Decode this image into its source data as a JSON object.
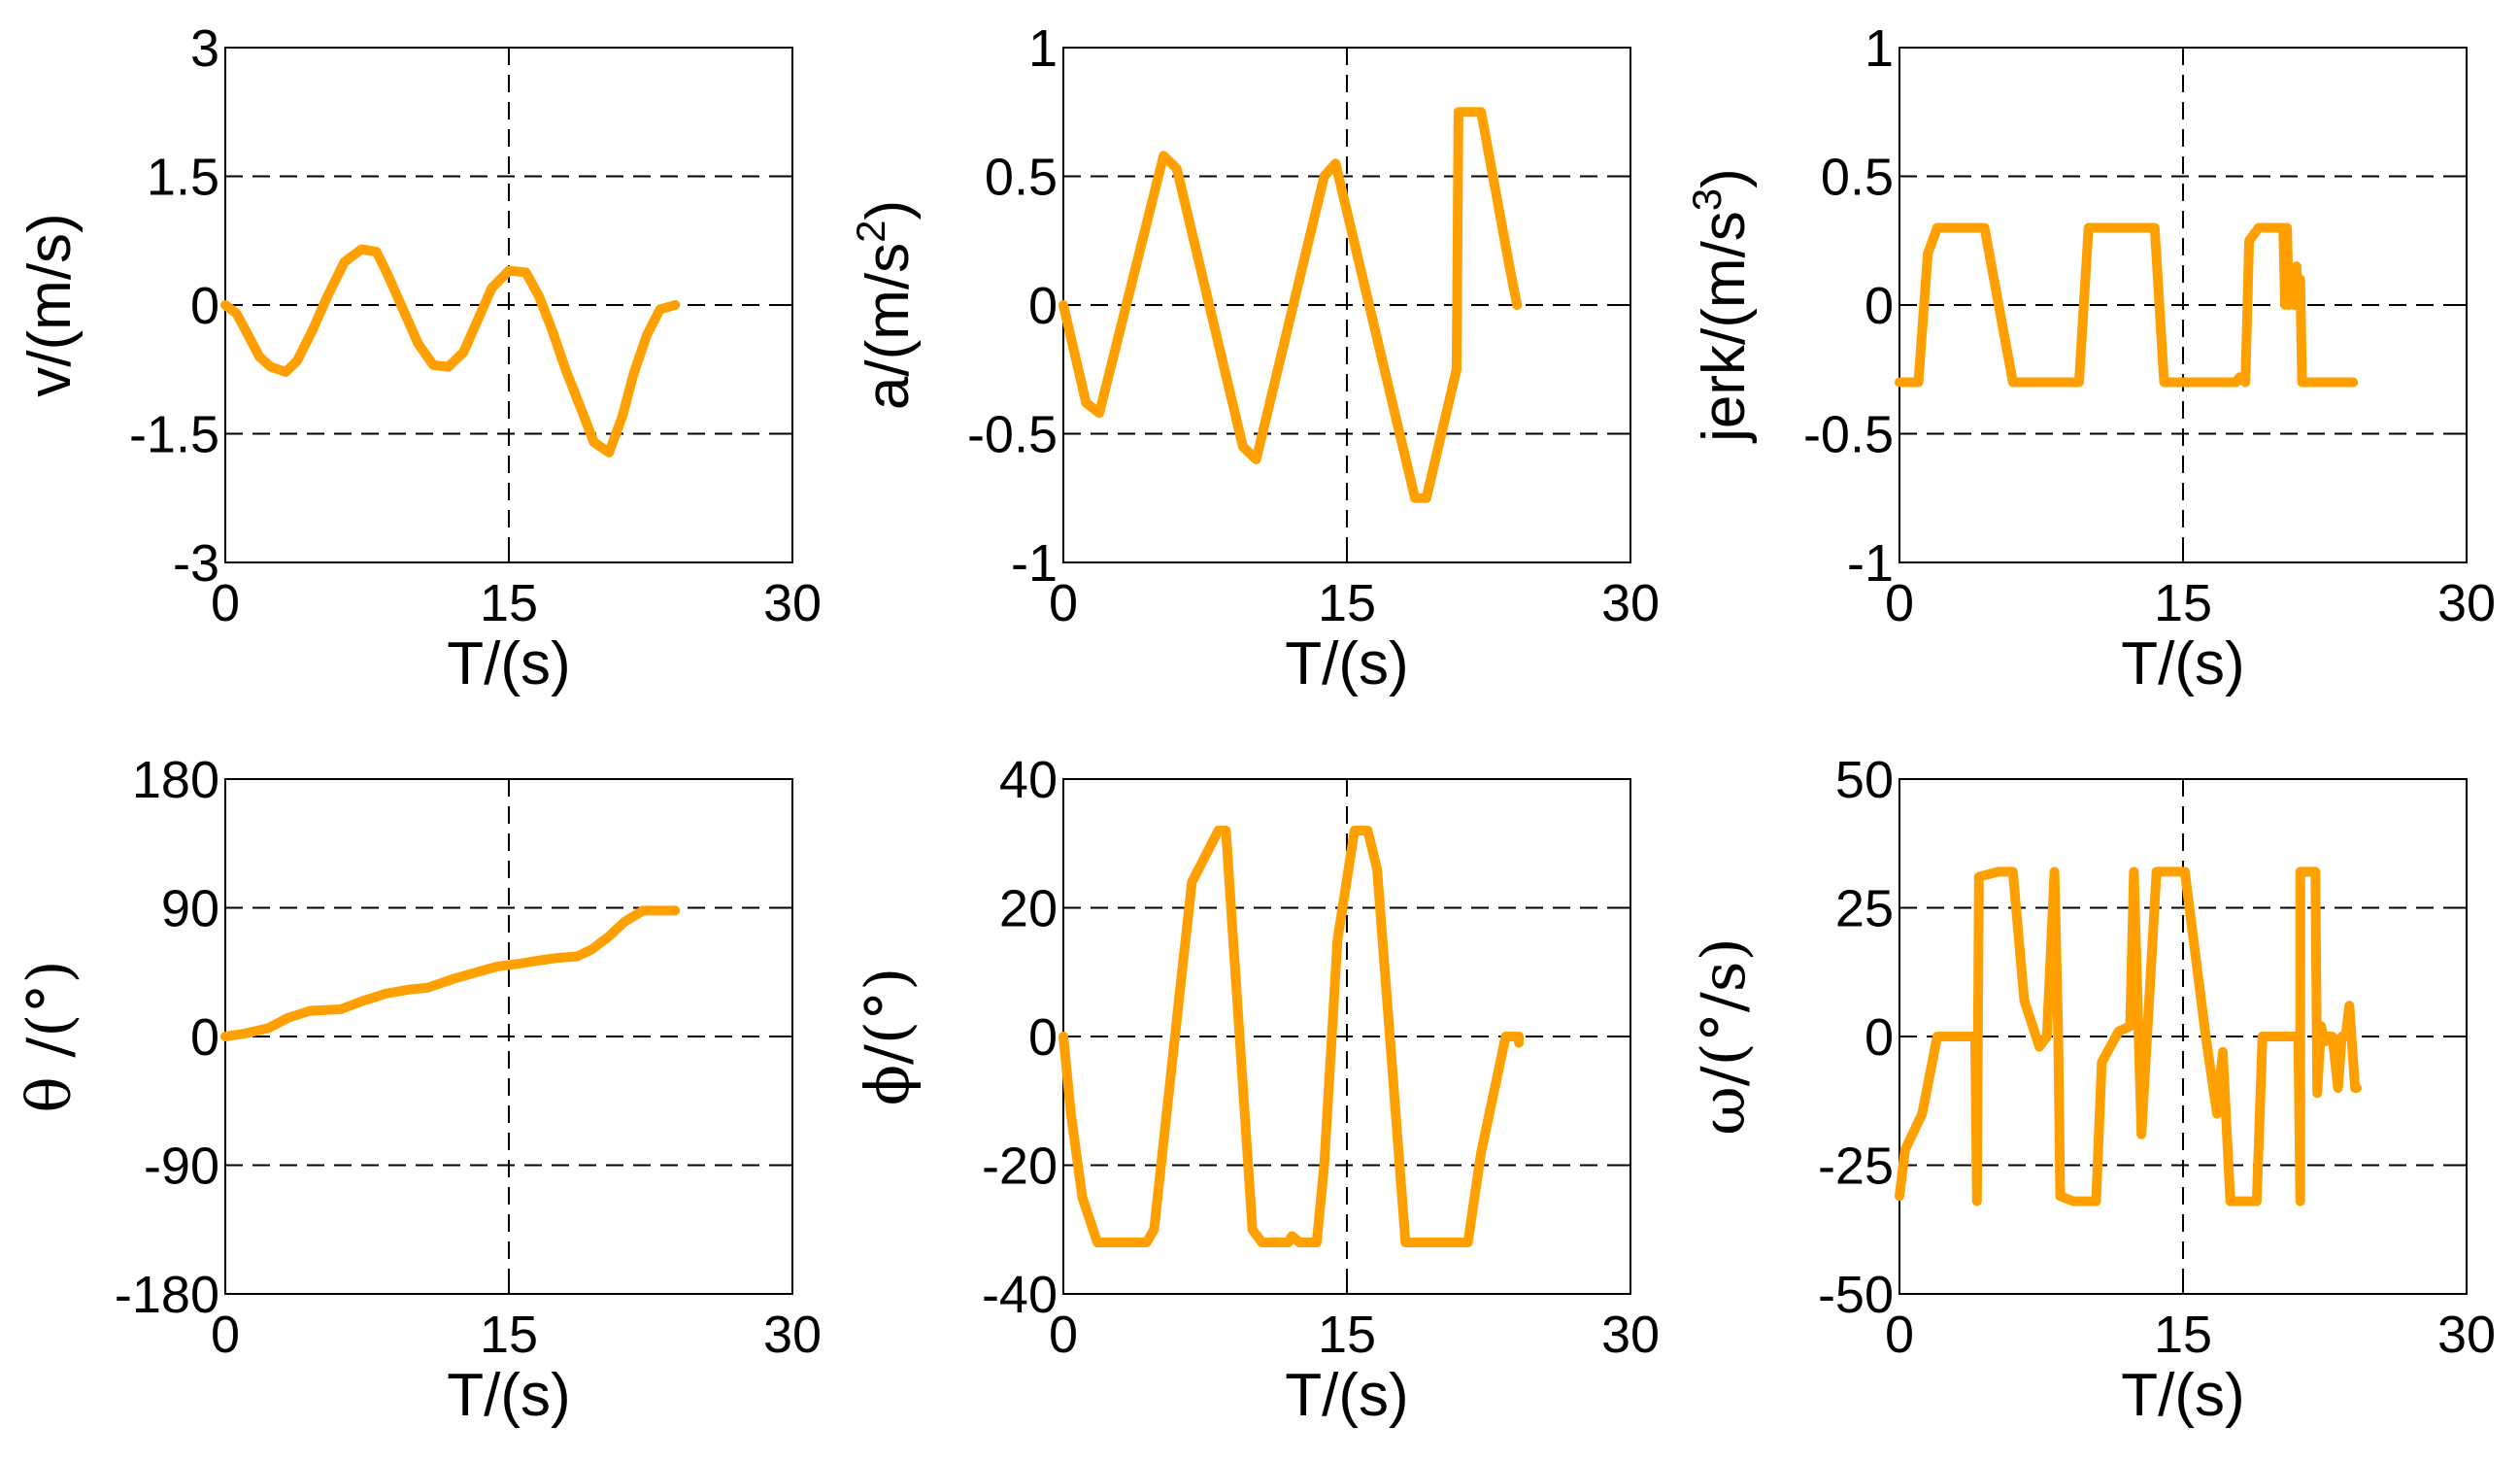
{
  "colors": {
    "series": "#FFA000",
    "axis": "#000000"
  },
  "chart_data": [
    {
      "type": "line",
      "xlabel": "T/(s)",
      "ylabel": "v/(m/s)",
      "xlim": [
        0,
        30
      ],
      "ylim": [
        -3,
        3
      ],
      "xticks": [
        "0",
        "15",
        "30"
      ],
      "yticks": [
        "-3",
        "-1.5",
        "0",
        "1.5",
        "3"
      ],
      "xtick_values": [
        0,
        15,
        30
      ],
      "ytick_values": [
        -3,
        -1.5,
        0,
        1.5,
        3
      ],
      "grid": "dashed",
      "series": [
        {
          "name": "v",
          "x": [
            0,
            0.6,
            1.2,
            1.8,
            2.4,
            3.2,
            3.8,
            4.6,
            5.4,
            6.3,
            7.2,
            8.0,
            8.6,
            9.4,
            10.2,
            11.0,
            11.8,
            12.6,
            13.3,
            14.1,
            15.0,
            15.9,
            16.6,
            17.3,
            18.0,
            18.8,
            19.5,
            20.3,
            21.0,
            21.6,
            22.3,
            23.0,
            23.8
          ],
          "y": [
            0,
            -0.1,
            -0.35,
            -0.6,
            -0.72,
            -0.78,
            -0.65,
            -0.3,
            0.1,
            0.5,
            0.65,
            0.62,
            0.35,
            -0.05,
            -0.45,
            -0.7,
            -0.72,
            -0.55,
            -0.2,
            0.2,
            0.4,
            0.38,
            0.1,
            -0.3,
            -0.75,
            -1.2,
            -1.6,
            -1.72,
            -1.3,
            -0.8,
            -0.35,
            -0.05,
            0
          ]
        }
      ]
    },
    {
      "type": "line",
      "xlabel": "T/(s)",
      "ylabel": "a/(m/s2)",
      "ylabel_main": "a/(m/s",
      "ylabel_sup": "2",
      "ylabel_close": ")",
      "xlim": [
        0,
        30
      ],
      "ylim": [
        -1,
        1
      ],
      "xticks": [
        "0",
        "15",
        "30"
      ],
      "yticks": [
        "-1",
        "-0.5",
        "0",
        "0.5",
        "1"
      ],
      "xtick_values": [
        0,
        15,
        30
      ],
      "ytick_values": [
        -1,
        -0.5,
        0,
        0.5,
        1
      ],
      "grid": "dashed",
      "series": [
        {
          "name": "a",
          "x": [
            0,
            1.2,
            1.9,
            5.3,
            6.0,
            9.5,
            10.2,
            13.8,
            14.4,
            18.6,
            19.2,
            20.8,
            20.9,
            22.1,
            23.6,
            24.0
          ],
          "y": [
            0,
            -0.38,
            -0.42,
            0.58,
            0.53,
            -0.55,
            -0.6,
            0.5,
            0.55,
            -0.75,
            -0.75,
            -0.25,
            0.75,
            0.75,
            0.15,
            0
          ]
        }
      ]
    },
    {
      "type": "line",
      "xlabel": "T/(s)",
      "ylabel": "jerk/(m/s3)",
      "ylabel_main": "jerk/(m/s",
      "ylabel_sup": "3",
      "ylabel_close": ")",
      "xlim": [
        0,
        30
      ],
      "ylim": [
        -1,
        1
      ],
      "xticks": [
        "0",
        "15",
        "30"
      ],
      "yticks": [
        "-1",
        "-0.5",
        "0",
        "0.5",
        "1"
      ],
      "xtick_values": [
        0,
        15,
        30
      ],
      "ytick_values": [
        -1,
        -0.5,
        0,
        0.5,
        1
      ],
      "grid": "dashed",
      "series": [
        {
          "name": "jerk",
          "x": [
            0,
            1.0,
            1.5,
            2.0,
            4.5,
            5.0,
            6.0,
            9.5,
            10.0,
            13.5,
            14.0,
            17.8,
            18.0,
            18.3,
            18.5,
            19.0,
            19.5,
            20.3,
            20.4,
            20.5,
            20.6,
            20.7,
            20.9,
            21.0,
            21.1,
            21.2,
            21.3,
            21.4,
            24.0
          ],
          "y": [
            -0.3,
            -0.3,
            0.2,
            0.3,
            0.3,
            0.1,
            -0.3,
            -0.3,
            0.3,
            0.3,
            -0.3,
            -0.3,
            -0.28,
            -0.3,
            0.25,
            0.3,
            0.3,
            0.3,
            0.0,
            0.3,
            0.0,
            0.1,
            0.0,
            0.15,
            0.0,
            0.1,
            -0.3,
            -0.3,
            -0.3
          ]
        }
      ]
    },
    {
      "type": "line",
      "xlabel": "T/(s)",
      "ylabel": "θ /(°)",
      "xlim": [
        0,
        30
      ],
      "ylim": [
        -180,
        180
      ],
      "xticks": [
        "0",
        "15",
        "30"
      ],
      "yticks": [
        "-180",
        "-90",
        "0",
        "90",
        "180"
      ],
      "xtick_values": [
        0,
        15,
        30
      ],
      "ytick_values": [
        -180,
        -90,
        0,
        90,
        180
      ],
      "grid": "dashed",
      "series": [
        {
          "name": "theta",
          "x": [
            0,
            1.0,
            2.3,
            3.3,
            4.5,
            6.1,
            7.3,
            8.5,
            9.8,
            10.7,
            12.0,
            13.3,
            14.4,
            15.6,
            16.5,
            17.6,
            18.6,
            19.4,
            20.3,
            21.1,
            22.1,
            23.0,
            23.8
          ],
          "y": [
            0,
            2,
            6,
            13,
            18,
            19,
            25,
            30,
            33,
            34,
            40,
            45,
            49,
            51,
            53,
            55,
            56,
            61,
            70,
            80,
            88,
            88,
            88
          ]
        }
      ]
    },
    {
      "type": "line",
      "xlabel": "T/(s)",
      "ylabel": "ϕ/(°)",
      "xlim": [
        0,
        30
      ],
      "ylim": [
        -40,
        40
      ],
      "xticks": [
        "0",
        "15",
        "30"
      ],
      "yticks": [
        "-40",
        "-20",
        "0",
        "20",
        "40"
      ],
      "xtick_values": [
        0,
        15,
        30
      ],
      "ytick_values": [
        -40,
        -20,
        0,
        20,
        40
      ],
      "grid": "dashed",
      "series": [
        {
          "name": "phi",
          "x": [
            0,
            0.4,
            1.0,
            1.8,
            4.4,
            4.8,
            6.2,
            6.8,
            8.2,
            8.6,
            10.0,
            10.5,
            11.9,
            12.1,
            12.5,
            13.4,
            13.8,
            14.5,
            15.4,
            16.1,
            16.6,
            18.1,
            18.6,
            21.4,
            22.1,
            23.4,
            24.1,
            24.1
          ],
          "y": [
            0,
            -12,
            -25,
            -32,
            -32,
            -30,
            8,
            24,
            32,
            32,
            -30,
            -32,
            -32,
            -31,
            -32,
            -32,
            -20,
            15,
            32,
            32,
            26,
            -32,
            -32,
            -32,
            -18,
            0,
            0,
            -1
          ]
        }
      ]
    },
    {
      "type": "line",
      "xlabel": "T/(s)",
      "ylabel": "ω/(°/s)",
      "xlim": [
        0,
        30
      ],
      "ylim": [
        -50,
        50
      ],
      "xticks": [
        "0",
        "15",
        "30"
      ],
      "yticks": [
        "-50",
        "-25",
        "0",
        "25",
        "50"
      ],
      "xtick_values": [
        0,
        15,
        30
      ],
      "ytick_values": [
        -50,
        -25,
        0,
        25,
        50
      ],
      "grid": "dashed",
      "series": [
        {
          "name": "omega",
          "x": [
            0,
            0.3,
            1.2,
            2.0,
            3.8,
            4.0,
            4.1,
            4.2,
            5.2,
            6.0,
            6.6,
            7.4,
            7.8,
            8.2,
            8.4,
            8.5,
            9.2,
            10.4,
            10.7,
            11.6,
            12.2,
            12.4,
            12.8,
            13.1,
            13.6,
            15.1,
            16.2,
            16.8,
            17.1,
            17.5,
            18.9,
            19.2,
            21.1,
            21.2,
            21.2,
            22.0,
            22.1,
            22.3,
            22.5,
            22.6,
            22.9,
            23.2,
            23.4,
            23.6,
            23.8,
            24.1,
            24.2
          ],
          "y": [
            -31,
            -22,
            -15,
            0,
            0,
            0,
            -32,
            31,
            32,
            32,
            7,
            -2,
            0,
            32,
            0,
            -31,
            -32,
            -32,
            -5,
            1,
            2,
            32,
            -19,
            0,
            32,
            32,
            0,
            -15,
            -3,
            -32,
            -32,
            0,
            0,
            -32,
            32,
            32,
            -11,
            2,
            -1,
            0,
            0,
            -10,
            0,
            0,
            6,
            -10,
            -10
          ]
        }
      ]
    }
  ]
}
